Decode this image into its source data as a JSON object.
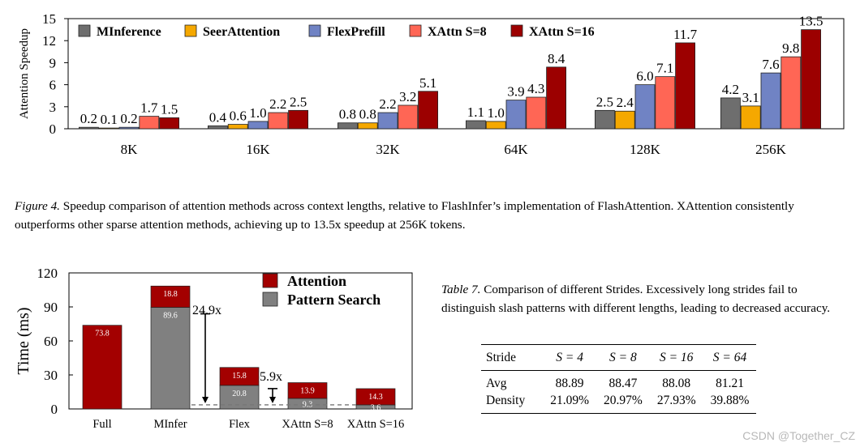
{
  "figure4": {
    "label": "Figure 4.",
    "text": "Speedup comparison of attention methods across context lengths, relative to FlashInfer’s implementation of FlashAttention. XAttention consistently outperforms other sparse attention methods, achieving up to 13.5x speedup at 256K tokens."
  },
  "table7": {
    "label": "Table 7.",
    "text": "Comparison of different Strides. Excessively long strides fail to distinguish slash patterns with different lengths, leading to decreased accuracy.",
    "header": [
      "Stride",
      "S = 4",
      "S = 8",
      "S = 16",
      "S = 64"
    ],
    "rows": [
      [
        "Avg",
        "88.89",
        "88.47",
        "88.08",
        "81.21"
      ],
      [
        "Density",
        "21.09%",
        "20.97%",
        "27.93%",
        "39.88%"
      ]
    ]
  },
  "watermark": "CSDN @Together_CZ",
  "chart_data": [
    {
      "type": "bar",
      "ylabel": "Attention Speedup",
      "xlabel": "",
      "ylim": [
        0,
        15
      ],
      "yticks": [
        0,
        3,
        6,
        9,
        12,
        15
      ],
      "legend_position": "top-left",
      "categories": [
        "8K",
        "16K",
        "32K",
        "64K",
        "128K",
        "256K"
      ],
      "series": [
        {
          "name": "MInference",
          "color": "#6e6e6e",
          "values": [
            0.2,
            0.4,
            0.8,
            1.1,
            2.5,
            4.2
          ]
        },
        {
          "name": "SeerAttention",
          "color": "#f5a800",
          "values": [
            0.1,
            0.6,
            0.8,
            1.0,
            2.4,
            3.1
          ]
        },
        {
          "name": "FlexPrefill",
          "color": "#7083c4",
          "values": [
            0.2,
            1.0,
            2.2,
            3.9,
            6.0,
            7.6
          ]
        },
        {
          "name": "XAttn S=8",
          "color": "#ff6655",
          "values": [
            1.7,
            2.2,
            3.2,
            4.3,
            7.1,
            9.8
          ]
        },
        {
          "name": "XAttn S=16",
          "color": "#9c0000",
          "values": [
            1.5,
            2.5,
            5.1,
            8.4,
            11.7,
            13.5
          ]
        }
      ]
    },
    {
      "type": "bar",
      "stacked": true,
      "ylabel": "Time (ms)",
      "xlabel": "",
      "ylim": [
        0,
        120
      ],
      "yticks": [
        0,
        30,
        60,
        90,
        120
      ],
      "legend_position": "top-right",
      "categories": [
        "Full",
        "MInfer",
        "Flex",
        "XAttn S=8",
        "XAttn S=16"
      ],
      "series": [
        {
          "name": "Pattern Search",
          "color": "#808080",
          "values": [
            0,
            89.6,
            20.8,
            9.3,
            3.6
          ],
          "labels": [
            "",
            "89.6",
            "20.8",
            "9.3",
            "3.6"
          ]
        },
        {
          "name": "Attention",
          "color": "#a30000",
          "values": [
            73.8,
            18.8,
            15.8,
            13.9,
            14.3
          ],
          "labels": [
            "73.8",
            "18.8",
            "15.8",
            "13.9",
            "14.3"
          ]
        }
      ],
      "annotations": [
        {
          "text": "24.9x",
          "from_category": "MInfer",
          "from_value": 89.6,
          "to_value": 3.6
        },
        {
          "text": "5.9x",
          "from_category": "Flex",
          "from_value": 20.8,
          "to_value": 3.6
        }
      ],
      "reference_line": 3.6
    }
  ]
}
